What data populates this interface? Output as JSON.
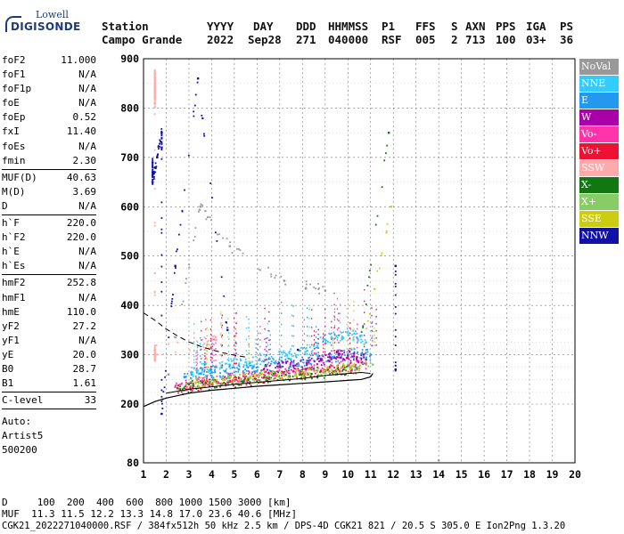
{
  "logo": {
    "top": "Lowell",
    "main": "DIGISONDE"
  },
  "header": {
    "labels": [
      "Station",
      "YYYY",
      "DAY",
      "DDD",
      "HHMMSS",
      "P1",
      "FFS",
      "S",
      "AXN",
      "PPS",
      "IGA",
      "PS"
    ],
    "values": [
      "Campo Grande",
      "2022",
      "Sep28",
      "271",
      "040000",
      "RSF",
      "005",
      "2",
      "713",
      "100",
      "03+",
      "36"
    ]
  },
  "params": [
    {
      "key": "foF2",
      "value": "11.000"
    },
    {
      "key": "foF1",
      "value": "N/A"
    },
    {
      "key": "foF1p",
      "value": "N/A"
    },
    {
      "key": "foE",
      "value": "N/A"
    },
    {
      "key": "foEp",
      "value": "0.52"
    },
    {
      "key": "fxI",
      "value": "11.40"
    },
    {
      "key": "foEs",
      "value": "N/A"
    },
    {
      "key": "fmin",
      "value": "2.30"
    },
    {
      "sep": true
    },
    {
      "key": "MUF(D)",
      "value": "40.63"
    },
    {
      "key": "M(D)",
      "value": "3.69"
    },
    {
      "key": "D",
      "value": "N/A"
    },
    {
      "sep": true
    },
    {
      "key": "h`F",
      "value": "220.0"
    },
    {
      "key": "h`F2",
      "value": "220.0"
    },
    {
      "key": "h`E",
      "value": "N/A"
    },
    {
      "key": "h`Es",
      "value": "N/A"
    },
    {
      "sep": true
    },
    {
      "key": "hmF2",
      "value": "252.8"
    },
    {
      "key": "hmF1",
      "value": "N/A"
    },
    {
      "key": "hmE",
      "value": "110.0"
    },
    {
      "key": "yF2",
      "value": "27.2"
    },
    {
      "key": "yF1",
      "value": "N/A"
    },
    {
      "key": "yE",
      "value": "20.0"
    },
    {
      "key": "B0",
      "value": "28.7"
    },
    {
      "key": "B1",
      "value": "1.61"
    },
    {
      "sep": true
    },
    {
      "key": "C-level",
      "value": "33"
    },
    {
      "sep": true
    }
  ],
  "auto": {
    "line1": "Auto:",
    "line2": "Artist5",
    "line3": "500200"
  },
  "legend": [
    {
      "label": "NoVal",
      "color": "#999999"
    },
    {
      "label": "NNE",
      "color": "#33ccff"
    },
    {
      "label": "E",
      "color": "#2299ee"
    },
    {
      "label": "W",
      "color": "#aa00aa"
    },
    {
      "label": "Vo-",
      "color": "#ff33aa"
    },
    {
      "label": "Vo+",
      "color": "#ee1133"
    },
    {
      "label": "SSW",
      "color": "#ffaaaa"
    },
    {
      "label": "X-",
      "color": "#117711"
    },
    {
      "label": "X+",
      "color": "#88cc66"
    },
    {
      "label": "SSE",
      "color": "#cccc11"
    },
    {
      "label": "NNW",
      "color": "#1111aa"
    }
  ],
  "bottom": {
    "d_line": "D     100  200  400  600  800 1000 1500 3000 [km]",
    "muf_line": "MUF  11.3 11.5 12.2 13.3 14.8 17.0 23.6 40.6 [MHz]",
    "file_line": "CGK21_2022271040000.RSF / 384fx512h 50 kHz 2.5 km / DPS-4D CGK21 821 / 20.5 S 305.0 E Ion2Png 1.3.20"
  },
  "chart_data": {
    "type": "scatter",
    "xlim": [
      1,
      20
    ],
    "ylim": [
      80,
      900
    ],
    "x_ticks": [
      1,
      2,
      3,
      4,
      5,
      6,
      7,
      8,
      9,
      10,
      11,
      12,
      13,
      14,
      15,
      16,
      17,
      18,
      19,
      20
    ],
    "y_ticks": [
      80,
      200,
      300,
      400,
      500,
      600,
      700,
      800,
      900
    ],
    "grid": true,
    "legend_placement": "right",
    "trace_solid": {
      "x": [
        1.0,
        1.5,
        2.0,
        3.0,
        4.0,
        5.0,
        6.0,
        7.0,
        8.0,
        9.0,
        10.0,
        10.6,
        11.0,
        11.1
      ],
      "y": [
        195,
        205,
        212,
        222,
        228,
        232,
        236,
        239,
        242,
        245,
        248,
        250,
        255,
        262
      ]
    },
    "trace_dashed": {
      "x": [
        1.0,
        1.5,
        2.0,
        2.5,
        3.0,
        3.5,
        4.0,
        4.5,
        5.0,
        5.5
      ],
      "y": [
        385,
        370,
        352,
        338,
        326,
        317,
        310,
        304,
        299,
        295
      ]
    },
    "trace_solid_top": {
      "x": [
        2.0,
        3.0,
        4.0,
        5.0,
        6.0,
        7.0,
        8.0,
        9.0,
        10.0,
        10.6,
        11.0
      ],
      "y": [
        222,
        230,
        235,
        240,
        244,
        248,
        252,
        258,
        262,
        264,
        262
      ]
    },
    "series": [
      {
        "name": "NNE",
        "x": [
          3.1,
          3.6,
          4.2,
          4.8,
          5.5,
          6.1,
          6.7,
          7.3,
          7.9,
          8.5,
          9.0,
          9.5,
          10.0,
          10.4,
          10.8
        ],
        "y": [
          265,
          272,
          276,
          280,
          285,
          290,
          292,
          300,
          308,
          318,
          330,
          338,
          345,
          335,
          325
        ]
      },
      {
        "name": "E",
        "x": [
          2.8,
          3.5,
          4.0,
          4.6,
          5.2,
          5.8,
          6.4,
          7.0,
          7.6,
          8.2,
          8.8,
          9.4,
          10.0,
          10.6,
          11.0
        ],
        "y": [
          255,
          262,
          264,
          266,
          270,
          273,
          277,
          280,
          284,
          288,
          292,
          296,
          300,
          302,
          300
        ]
      },
      {
        "name": "W",
        "x": [
          6.3,
          7.0,
          7.6,
          8.2,
          8.8,
          9.2,
          9.6,
          10.0,
          10.4,
          10.8
        ],
        "y": [
          270,
          275,
          278,
          282,
          288,
          295,
          302,
          298,
          295,
          290
        ]
      },
      {
        "name": "Vo-",
        "x": [
          2.4,
          3.0,
          3.6,
          4.2,
          4.8,
          5.4,
          6.0,
          6.8,
          7.6,
          8.4,
          9.2,
          10.0,
          10.8
        ],
        "y": [
          235,
          240,
          245,
          248,
          252,
          256,
          258,
          262,
          266,
          270,
          274,
          278,
          282
        ]
      },
      {
        "name": "Vo+",
        "x": [
          2.5,
          3.2,
          4.0,
          4.8,
          5.6,
          6.4,
          7.2,
          8.0,
          8.8,
          9.6,
          10.4
        ],
        "y": [
          232,
          237,
          242,
          246,
          250,
          254,
          258,
          262,
          266,
          270,
          274
        ]
      },
      {
        "name": "SSW",
        "x": [
          1.5,
          1.5,
          1.5,
          1.5,
          1.5,
          1.5,
          1.5,
          1.5,
          1.5,
          1.5,
          3.8,
          4.2
        ],
        "y": [
          810,
          820,
          830,
          840,
          850,
          860,
          870,
          290,
          300,
          310,
          320,
          330
        ]
      },
      {
        "name": "X-",
        "x": [
          2.6,
          3.4,
          4.4,
          5.4,
          6.4,
          7.4,
          8.4,
          9.4,
          10.4,
          11.8
        ],
        "y": [
          230,
          236,
          241,
          246,
          251,
          256,
          261,
          266,
          271,
          750
        ]
      },
      {
        "name": "X+",
        "x": [
          2.9,
          4.1,
          5.3,
          6.5,
          7.7,
          8.9,
          10.1,
          11.1
        ],
        "y": [
          240,
          246,
          251,
          256,
          261,
          266,
          271,
          280
        ]
      },
      {
        "name": "SSE",
        "x": [
          3.3,
          4.5,
          5.7,
          6.9,
          8.1,
          9.3,
          10.5,
          11.9
        ],
        "y": [
          244,
          249,
          254,
          259,
          264,
          269,
          274,
          600
        ]
      },
      {
        "name": "NNW",
        "x": [
          1.4,
          1.4,
          1.4,
          1.6,
          1.8,
          1.8,
          1.8,
          2.4,
          3.4,
          4.7,
          7.8,
          12.1,
          12.1
        ],
        "y": [
          690,
          670,
          650,
          700,
          750,
          720,
          180,
          480,
          860,
          350,
          310,
          270,
          480
        ]
      },
      {
        "name": "NoVal",
        "x": [
          2.1,
          3.5,
          4.8,
          7.2,
          9.0,
          14.0
        ],
        "y": [
          260,
          600,
          520,
          450,
          430,
          85
        ]
      }
    ]
  }
}
